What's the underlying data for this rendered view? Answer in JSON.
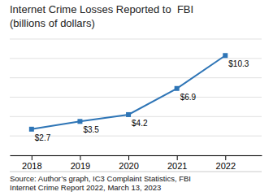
{
  "chart_data": {
    "type": "line",
    "title": "Internet Crime Losses Reported to  FBI",
    "subtitle": "(billions of dollars)",
    "annotations": [
      "Source: Author’s graph, IC3 Complaint Statistics, FBI\nInternet Crime Report 2022, March 13, 2023"
    ],
    "x": [
      2018,
      2019,
      2020,
      2021,
      2022
    ],
    "values": [
      2.7,
      3.5,
      4.2,
      6.9,
      10.3
    ],
    "value_labels": [
      "$2.7",
      "$3.5",
      "$4.2",
      "$6.9",
      "$10.3"
    ],
    "data_labels": true,
    "color": "#2E75B6",
    "marker": "square",
    "xlim": [
      2017.55,
      2022.75
    ],
    "xticks": [
      2018,
      2019,
      2020,
      2021,
      2022
    ],
    "ylim": [
      0,
      12
    ],
    "yticks": [
      0,
      2,
      4,
      6,
      8,
      10,
      12
    ],
    "tick_labels": "x",
    "grid": true
  }
}
